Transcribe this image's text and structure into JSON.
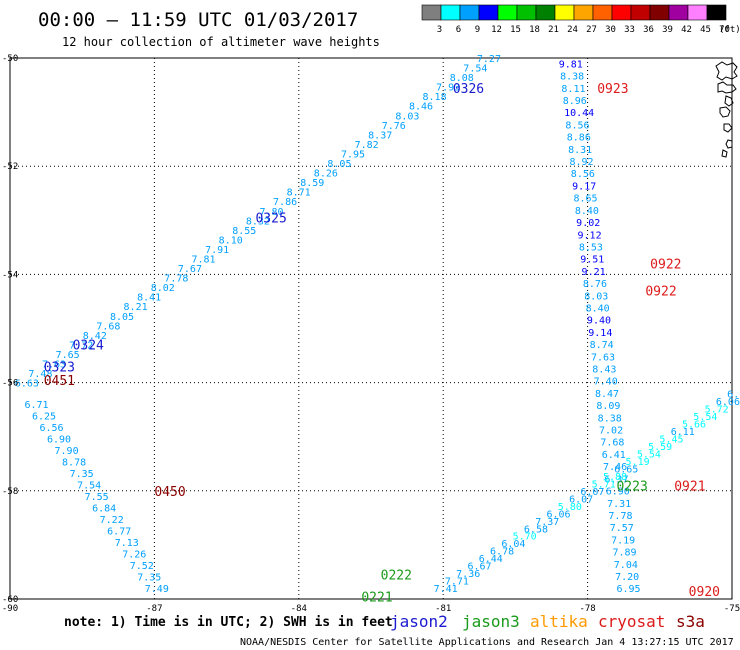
{
  "header": {
    "title": "00:00 – 11:59 UTC 01/03/2017",
    "subtitle": "12 hour collection of altimeter wave heights"
  },
  "colorbar": {
    "colors": [
      "#7f7f7f",
      "#00ffff",
      "#00a0ff",
      "#0000ff",
      "#00ff00",
      "#00c000",
      "#008000",
      "#ffff00",
      "#ffa500",
      "#ff6000",
      "#ff0000",
      "#c00000",
      "#800000",
      "#a000a0",
      "#ff80ff",
      "#000000"
    ],
    "labels": [
      "3",
      "6",
      "9",
      "12",
      "15",
      "18",
      "21",
      "24",
      "27",
      "30",
      "33",
      "36",
      "39",
      "42",
      "45",
      "70"
    ],
    "unit": "(ft)"
  },
  "axes": {
    "lon_ticks": [
      "-90",
      "-87",
      "-84",
      "-81",
      "-78",
      "-75"
    ],
    "lat_ticks": [
      "-50",
      "-52",
      "-54",
      "-56",
      "-58",
      "-60"
    ]
  },
  "note": "note: 1) Time is in UTC; 2) SWH is in feet",
  "legend": [
    {
      "name": "jason2",
      "color": "#1a1ad0"
    },
    {
      "name": "jason3",
      "color": "#1a9a1a"
    },
    {
      "name": "altika",
      "color": "#ff9a00"
    },
    {
      "name": "cryosat",
      "color": "#dd1a1a"
    },
    {
      "name": "s3a",
      "color": "#8a0000"
    }
  ],
  "footer": "NOAA/NESDIS Center for Satellite Applications and Research  Jan  4 13:27:15 UTC 2017",
  "map_data": {
    "lon_range": [
      -90,
      -75
    ],
    "lat_range": [
      -60,
      -50
    ],
    "tracks": [
      {
        "start": [
          -89.9,
          -56.0
        ],
        "end": [
          -80.3,
          -50.0
        ],
        "values": [
          "6.63",
          "7.48",
          "7.63",
          "7.65",
          "7.72",
          "8.42",
          "7.68",
          "8.05",
          "8.21",
          "8.41",
          "8.02",
          "7.78",
          "7.67",
          "7.81",
          "7.91",
          "8.10",
          "8.55",
          "8.32",
          "7.80",
          "7.86",
          "8.71",
          "8.59",
          "8.26",
          "8.05",
          "7.95",
          "7.82",
          "8.37",
          "7.76",
          "8.03",
          "8.46",
          "8.18",
          "7.93",
          "8.08",
          "7.54",
          "7.27"
        ]
      },
      {
        "start": [
          -89.7,
          -56.4
        ],
        "end": [
          -87.2,
          -59.8
        ],
        "values": [
          "6.71",
          "6.25",
          "6.56",
          "6.90",
          "7.90",
          "8.78",
          "7.35",
          "7.54",
          "7.55",
          "6.84",
          "7.22",
          "6.77",
          "7.13",
          "7.26",
          "7.52",
          "7.35",
          "7.49"
        ]
      },
      {
        "start": [
          -78.6,
          -50.1
        ],
        "end": [
          -77.4,
          -59.8
        ],
        "values": [
          "9.81",
          "8.38",
          "8.11",
          "8.96",
          "10.44",
          "8.56",
          "8.86",
          "8.31",
          "8.92",
          "8.56",
          "9.17",
          "8.65",
          "8.40",
          "9.02",
          "9.12",
          "8.53",
          "9.51",
          "9.21",
          "8.76",
          "8.03",
          "8.40",
          "9.40",
          "9.14",
          "8.74",
          "7.63",
          "8.43",
          "7.40",
          "8.47",
          "8.09",
          "8.38",
          "7.02",
          "7.68",
          "6.41",
          "7.46",
          "6.37",
          "6.90",
          "7.31",
          "7.78",
          "7.57",
          "7.19",
          "7.89",
          "7.04",
          "7.20",
          "6.95"
        ]
      },
      {
        "start": [
          -81.2,
          -59.8
        ],
        "end": [
          -75.1,
          -56.2
        ],
        "values": [
          "7.41",
          "7.71",
          "7.36",
          "6.67",
          "6.44",
          "6.78",
          "6.04",
          "5.70",
          "6.58",
          "7.37",
          "6.06",
          "5.80",
          "6.07",
          "6.07",
          "5.71",
          "5.88",
          "6.65",
          "5.19",
          "5.54",
          "5.59",
          "5.45",
          "6.11",
          "5.66",
          "5.54",
          "5.72",
          "6.06",
          "6.08"
        ]
      }
    ],
    "time_labels": [
      {
        "text": "0326",
        "sat": "jason2",
        "lon": -80.8,
        "lat": -50.55
      },
      {
        "text": "0325",
        "sat": "jason2",
        "lon": -84.9,
        "lat": -52.95
      },
      {
        "text": "0324",
        "sat": "jason2",
        "lon": -88.7,
        "lat": -55.3
      },
      {
        "text": "0323",
        "sat": "jason2",
        "lon": -89.3,
        "lat": -55.7
      },
      {
        "text": "0451",
        "sat": "s3a",
        "lon": -89.3,
        "lat": -55.95
      },
      {
        "text": "0450",
        "sat": "s3a",
        "lon": -87.0,
        "lat": -58.0
      },
      {
        "text": "0923",
        "sat": "cryosat",
        "lon": -77.8,
        "lat": -50.55
      },
      {
        "text": "0922",
        "sat": "cryosat",
        "lon": -76.7,
        "lat": -53.8
      },
      {
        "text": "0922",
        "sat": "cryosat",
        "lon": -76.8,
        "lat": -54.3
      },
      {
        "text": "0921",
        "sat": "cryosat",
        "lon": -76.2,
        "lat": -57.9
      },
      {
        "text": "0920",
        "sat": "cryosat",
        "lon": -75.9,
        "lat": -59.85
      },
      {
        "text": "0223",
        "sat": "jason3",
        "lon": -77.4,
        "lat": -57.9
      },
      {
        "text": "0222",
        "sat": "jason3",
        "lon": -82.3,
        "lat": -59.55
      },
      {
        "text": "0221",
        "sat": "jason3",
        "lon": -82.7,
        "lat": -59.95
      }
    ]
  }
}
